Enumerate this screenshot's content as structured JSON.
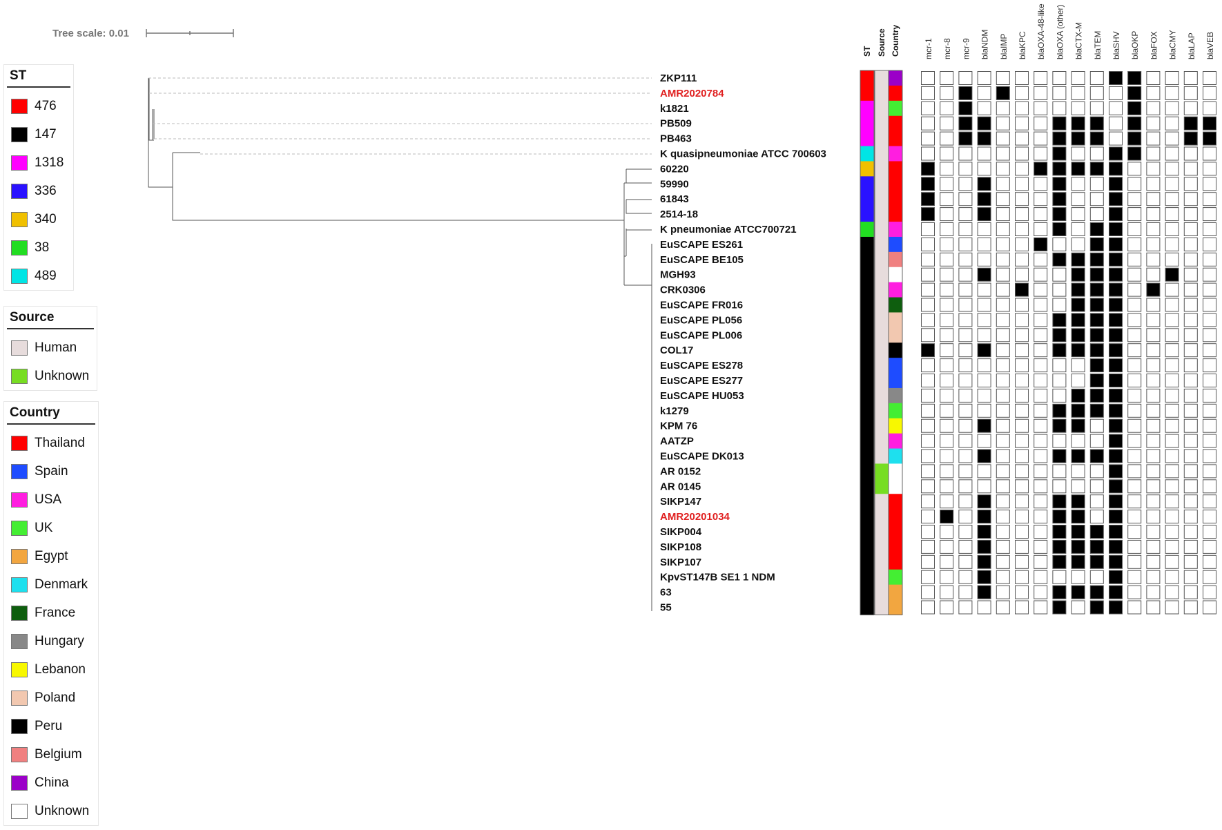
{
  "tree_scale": {
    "label": "Tree scale: 0.01"
  },
  "legends": {
    "st": {
      "title": "ST",
      "items": [
        {
          "label": "476",
          "color": "#ff0000"
        },
        {
          "label": "147",
          "color": "#000000"
        },
        {
          "label": "1318",
          "color": "#ff00ff"
        },
        {
          "label": "336",
          "color": "#2a12ff"
        },
        {
          "label": "340",
          "color": "#f0c000"
        },
        {
          "label": "38",
          "color": "#22dd22"
        },
        {
          "label": "489",
          "color": "#00e5e5"
        }
      ]
    },
    "source": {
      "title": "Source",
      "items": [
        {
          "label": "Human",
          "color": "#e7dcdc"
        },
        {
          "label": "Unknown",
          "color": "#77dd22"
        }
      ]
    },
    "country": {
      "title": "Country",
      "items": [
        {
          "label": "Thailand",
          "color": "#ff0000"
        },
        {
          "label": "Spain",
          "color": "#1e4cff"
        },
        {
          "label": "USA",
          "color": "#ff1ee0"
        },
        {
          "label": "UK",
          "color": "#44ee33"
        },
        {
          "label": "Egypt",
          "color": "#f2a640"
        },
        {
          "label": "Denmark",
          "color": "#1ee0ee"
        },
        {
          "label": "France",
          "color": "#0e5e0e"
        },
        {
          "label": "Hungary",
          "color": "#888888"
        },
        {
          "label": "Lebanon",
          "color": "#f8f800"
        },
        {
          "label": "Poland",
          "color": "#f2c8b0"
        },
        {
          "label": "Peru",
          "color": "#000000"
        },
        {
          "label": "Belgium",
          "color": "#f08080"
        },
        {
          "label": "China",
          "color": "#9b00c8"
        },
        {
          "label": "Unknown",
          "color": "#ffffff"
        }
      ]
    }
  },
  "strip_headers": [
    "ST",
    "Source",
    "Country"
  ],
  "genes": [
    "mcr-1",
    "mcr-8",
    "mcr-9",
    "blaNDM",
    "blaIMP",
    "blaKPC",
    "blaOXA-48-like",
    "blaOXA (other)",
    "blaCTX-M",
    "blaTEM",
    "blaSHV",
    "blaOKP",
    "blaFOX",
    "blaCMY",
    "blaLAP",
    "blaVEB"
  ],
  "highlight_color": "#e02020",
  "isolates": [
    {
      "name": "ZKP111",
      "highlight": false,
      "st": "#ff0000",
      "source": "#e7dcdc",
      "country": "#9b00c8",
      "genes": [
        0,
        0,
        0,
        0,
        0,
        0,
        0,
        0,
        0,
        0,
        1,
        1,
        0,
        0,
        0,
        0
      ]
    },
    {
      "name": "AMR2020784",
      "highlight": true,
      "st": "#ff0000",
      "source": "#e7dcdc",
      "country": "#ff0000",
      "genes": [
        0,
        0,
        1,
        0,
        1,
        0,
        0,
        0,
        0,
        0,
        0,
        1,
        0,
        0,
        0,
        0
      ]
    },
    {
      "name": "k1821",
      "highlight": false,
      "st": "#ff00ff",
      "source": "#e7dcdc",
      "country": "#44ee33",
      "genes": [
        0,
        0,
        1,
        0,
        0,
        0,
        0,
        0,
        0,
        0,
        0,
        1,
        0,
        0,
        0,
        0
      ]
    },
    {
      "name": "PB509",
      "highlight": false,
      "st": "#ff00ff",
      "source": "#e7dcdc",
      "country": "#ff0000",
      "genes": [
        0,
        0,
        1,
        1,
        0,
        0,
        0,
        1,
        1,
        1,
        0,
        1,
        0,
        0,
        1,
        1
      ]
    },
    {
      "name": "PB463",
      "highlight": false,
      "st": "#ff00ff",
      "source": "#e7dcdc",
      "country": "#ff0000",
      "genes": [
        0,
        0,
        1,
        1,
        0,
        0,
        0,
        1,
        1,
        1,
        0,
        1,
        0,
        0,
        1,
        1
      ]
    },
    {
      "name": "K quasipneumoniae ATCC 700603",
      "highlight": false,
      "st": "#00e5e5",
      "source": "#e7dcdc",
      "country": "#ff1ee0",
      "genes": [
        0,
        0,
        0,
        0,
        0,
        0,
        0,
        1,
        0,
        0,
        1,
        1,
        0,
        0,
        0,
        0
      ]
    },
    {
      "name": "60220",
      "highlight": false,
      "st": "#f0c000",
      "source": "#e7dcdc",
      "country": "#ff0000",
      "genes": [
        1,
        0,
        0,
        0,
        0,
        0,
        1,
        1,
        1,
        1,
        1,
        0,
        0,
        0,
        0,
        0
      ]
    },
    {
      "name": "59990",
      "highlight": false,
      "st": "#2a12ff",
      "source": "#e7dcdc",
      "country": "#ff0000",
      "genes": [
        1,
        0,
        0,
        1,
        0,
        0,
        0,
        1,
        0,
        0,
        1,
        0,
        0,
        0,
        0,
        0
      ]
    },
    {
      "name": "61843",
      "highlight": false,
      "st": "#2a12ff",
      "source": "#e7dcdc",
      "country": "#ff0000",
      "genes": [
        1,
        0,
        0,
        1,
        0,
        0,
        0,
        1,
        0,
        0,
        1,
        0,
        0,
        0,
        0,
        0
      ]
    },
    {
      "name": "2514-18",
      "highlight": false,
      "st": "#2a12ff",
      "source": "#e7dcdc",
      "country": "#ff0000",
      "genes": [
        1,
        0,
        0,
        1,
        0,
        0,
        0,
        1,
        0,
        0,
        1,
        0,
        0,
        0,
        0,
        0
      ]
    },
    {
      "name": "K pneumoniae ATCC700721",
      "highlight": false,
      "st": "#22dd22",
      "source": "#e7dcdc",
      "country": "#ff1ee0",
      "genes": [
        0,
        0,
        0,
        0,
        0,
        0,
        0,
        1,
        0,
        1,
        1,
        0,
        0,
        0,
        0,
        0
      ]
    },
    {
      "name": "EuSCAPE ES261",
      "highlight": false,
      "st": "#000000",
      "source": "#e7dcdc",
      "country": "#1e4cff",
      "genes": [
        0,
        0,
        0,
        0,
        0,
        0,
        1,
        0,
        0,
        1,
        1,
        0,
        0,
        0,
        0,
        0
      ]
    },
    {
      "name": "EuSCAPE BE105",
      "highlight": false,
      "st": "#000000",
      "source": "#e7dcdc",
      "country": "#f08080",
      "genes": [
        0,
        0,
        0,
        0,
        0,
        0,
        0,
        1,
        1,
        1,
        1,
        0,
        0,
        0,
        0,
        0
      ]
    },
    {
      "name": "MGH93",
      "highlight": false,
      "st": "#000000",
      "source": "#e7dcdc",
      "country": "#ffffff",
      "genes": [
        0,
        0,
        0,
        1,
        0,
        0,
        0,
        0,
        1,
        1,
        1,
        0,
        0,
        1,
        0,
        0
      ]
    },
    {
      "name": "CRK0306",
      "highlight": false,
      "st": "#000000",
      "source": "#e7dcdc",
      "country": "#ff1ee0",
      "genes": [
        0,
        0,
        0,
        0,
        0,
        1,
        0,
        0,
        1,
        1,
        1,
        0,
        1,
        0,
        0,
        0
      ]
    },
    {
      "name": "EuSCAPE FR016",
      "highlight": false,
      "st": "#000000",
      "source": "#e7dcdc",
      "country": "#0e5e0e",
      "genes": [
        0,
        0,
        0,
        0,
        0,
        0,
        0,
        0,
        1,
        1,
        1,
        0,
        0,
        0,
        0,
        0
      ]
    },
    {
      "name": "EuSCAPE PL056",
      "highlight": false,
      "st": "#000000",
      "source": "#e7dcdc",
      "country": "#f2c8b0",
      "genes": [
        0,
        0,
        0,
        0,
        0,
        0,
        0,
        1,
        1,
        1,
        1,
        0,
        0,
        0,
        0,
        0
      ]
    },
    {
      "name": "EuSCAPE PL006",
      "highlight": false,
      "st": "#000000",
      "source": "#e7dcdc",
      "country": "#f2c8b0",
      "genes": [
        0,
        0,
        0,
        0,
        0,
        0,
        0,
        1,
        1,
        1,
        1,
        0,
        0,
        0,
        0,
        0
      ]
    },
    {
      "name": "COL17",
      "highlight": false,
      "st": "#000000",
      "source": "#e7dcdc",
      "country": "#000000",
      "genes": [
        1,
        0,
        0,
        1,
        0,
        0,
        0,
        1,
        1,
        1,
        1,
        0,
        0,
        0,
        0,
        0
      ]
    },
    {
      "name": "EuSCAPE ES278",
      "highlight": false,
      "st": "#000000",
      "source": "#e7dcdc",
      "country": "#1e4cff",
      "genes": [
        0,
        0,
        0,
        0,
        0,
        0,
        0,
        0,
        0,
        1,
        1,
        0,
        0,
        0,
        0,
        0
      ]
    },
    {
      "name": "EuSCAPE ES277",
      "highlight": false,
      "st": "#000000",
      "source": "#e7dcdc",
      "country": "#1e4cff",
      "genes": [
        0,
        0,
        0,
        0,
        0,
        0,
        0,
        0,
        0,
        1,
        1,
        0,
        0,
        0,
        0,
        0
      ]
    },
    {
      "name": "EuSCAPE HU053",
      "highlight": false,
      "st": "#000000",
      "source": "#e7dcdc",
      "country": "#888888",
      "genes": [
        0,
        0,
        0,
        0,
        0,
        0,
        0,
        0,
        1,
        1,
        1,
        0,
        0,
        0,
        0,
        0
      ]
    },
    {
      "name": "k1279",
      "highlight": false,
      "st": "#000000",
      "source": "#e7dcdc",
      "country": "#44ee33",
      "genes": [
        0,
        0,
        0,
        0,
        0,
        0,
        0,
        1,
        1,
        1,
        1,
        0,
        0,
        0,
        0,
        0
      ]
    },
    {
      "name": "KPM 76",
      "highlight": false,
      "st": "#000000",
      "source": "#e7dcdc",
      "country": "#f8f800",
      "genes": [
        0,
        0,
        0,
        1,
        0,
        0,
        0,
        1,
        1,
        0,
        1,
        0,
        0,
        0,
        0,
        0
      ]
    },
    {
      "name": "AATZP",
      "highlight": false,
      "st": "#000000",
      "source": "#e7dcdc",
      "country": "#ff1ee0",
      "genes": [
        0,
        0,
        0,
        0,
        0,
        0,
        0,
        0,
        0,
        0,
        1,
        0,
        0,
        0,
        0,
        0
      ]
    },
    {
      "name": "EuSCAPE DK013",
      "highlight": false,
      "st": "#000000",
      "source": "#e7dcdc",
      "country": "#1ee0ee",
      "genes": [
        0,
        0,
        0,
        1,
        0,
        0,
        0,
        1,
        1,
        1,
        1,
        0,
        0,
        0,
        0,
        0
      ]
    },
    {
      "name": "AR 0152",
      "highlight": false,
      "st": "#000000",
      "source": "#77dd22",
      "country": "#ffffff",
      "genes": [
        0,
        0,
        0,
        0,
        0,
        0,
        0,
        0,
        0,
        0,
        1,
        0,
        0,
        0,
        0,
        0
      ]
    },
    {
      "name": "AR 0145",
      "highlight": false,
      "st": "#000000",
      "source": "#77dd22",
      "country": "#ffffff",
      "genes": [
        0,
        0,
        0,
        0,
        0,
        0,
        0,
        0,
        0,
        0,
        1,
        0,
        0,
        0,
        0,
        0
      ]
    },
    {
      "name": "SIKP147",
      "highlight": false,
      "st": "#000000",
      "source": "#e7dcdc",
      "country": "#ff0000",
      "genes": [
        0,
        0,
        0,
        1,
        0,
        0,
        0,
        1,
        1,
        0,
        1,
        0,
        0,
        0,
        0,
        0
      ]
    },
    {
      "name": "AMR20201034",
      "highlight": true,
      "st": "#000000",
      "source": "#e7dcdc",
      "country": "#ff0000",
      "genes": [
        0,
        1,
        0,
        1,
        0,
        0,
        0,
        1,
        1,
        0,
        1,
        0,
        0,
        0,
        0,
        0
      ]
    },
    {
      "name": "SIKP004",
      "highlight": false,
      "st": "#000000",
      "source": "#e7dcdc",
      "country": "#ff0000",
      "genes": [
        0,
        0,
        0,
        1,
        0,
        0,
        0,
        1,
        1,
        1,
        1,
        0,
        0,
        0,
        0,
        0
      ]
    },
    {
      "name": "SIKP108",
      "highlight": false,
      "st": "#000000",
      "source": "#e7dcdc",
      "country": "#ff0000",
      "genes": [
        0,
        0,
        0,
        1,
        0,
        0,
        0,
        1,
        1,
        1,
        1,
        0,
        0,
        0,
        0,
        0
      ]
    },
    {
      "name": "SIKP107",
      "highlight": false,
      "st": "#000000",
      "source": "#e7dcdc",
      "country": "#ff0000",
      "genes": [
        0,
        0,
        0,
        1,
        0,
        0,
        0,
        1,
        1,
        1,
        1,
        0,
        0,
        0,
        0,
        0
      ]
    },
    {
      "name": "KpvST147B SE1 1 NDM",
      "highlight": false,
      "st": "#000000",
      "source": "#e7dcdc",
      "country": "#44ee33",
      "genes": [
        0,
        0,
        0,
        1,
        0,
        0,
        0,
        0,
        0,
        0,
        1,
        0,
        0,
        0,
        0,
        0
      ]
    },
    {
      "name": "63",
      "highlight": false,
      "st": "#000000",
      "source": "#e7dcdc",
      "country": "#f2a640",
      "genes": [
        0,
        0,
        0,
        1,
        0,
        0,
        0,
        1,
        1,
        1,
        1,
        0,
        0,
        0,
        0,
        0
      ]
    },
    {
      "name": "55",
      "highlight": false,
      "st": "#000000",
      "source": "#e7dcdc",
      "country": "#f2a640",
      "genes": [
        0,
        0,
        0,
        0,
        0,
        0,
        0,
        1,
        0,
        1,
        1,
        0,
        0,
        0,
        0,
        0
      ]
    }
  ]
}
